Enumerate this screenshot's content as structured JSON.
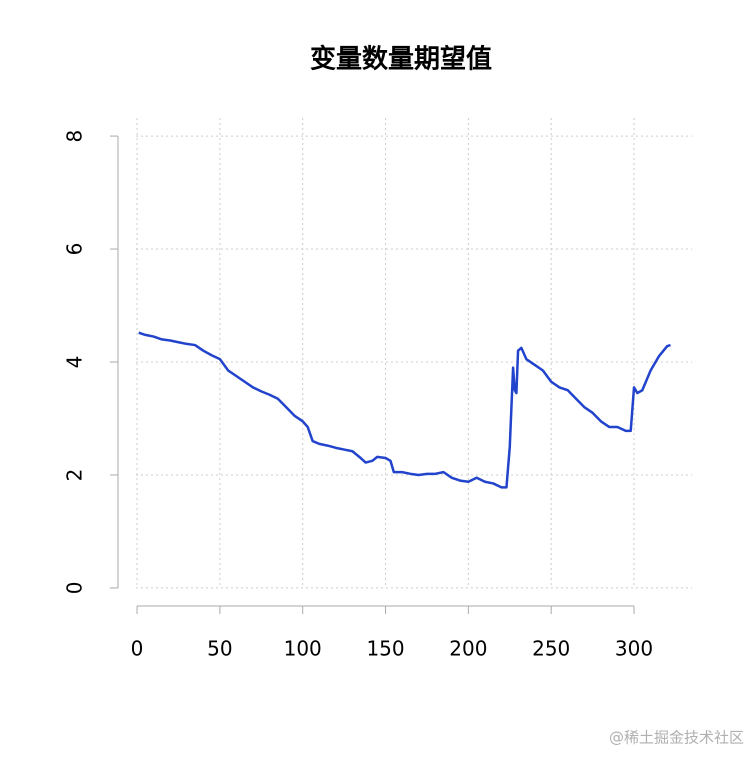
{
  "chart_data": {
    "type": "line",
    "title": "变量数量期望值",
    "x": [
      1,
      5,
      10,
      15,
      20,
      25,
      30,
      35,
      40,
      45,
      50,
      55,
      60,
      65,
      70,
      75,
      80,
      85,
      90,
      95,
      100,
      103,
      106,
      110,
      115,
      120,
      125,
      130,
      135,
      138,
      142,
      145,
      150,
      153,
      155,
      160,
      165,
      170,
      175,
      180,
      185,
      190,
      195,
      200,
      205,
      210,
      215,
      220,
      223,
      225,
      227,
      228,
      229,
      230,
      232,
      235,
      240,
      245,
      250,
      255,
      260,
      265,
      270,
      275,
      280,
      285,
      290,
      295,
      298,
      300,
      302,
      305,
      310,
      315,
      320,
      322
    ],
    "series": [
      {
        "color": "#2244cc",
        "values": [
          4.52,
          4.48,
          4.45,
          4.4,
          4.38,
          4.35,
          4.32,
          4.3,
          4.2,
          4.12,
          4.05,
          3.85,
          3.75,
          3.65,
          3.55,
          3.48,
          3.42,
          3.35,
          3.2,
          3.05,
          2.95,
          2.85,
          2.6,
          2.55,
          2.52,
          2.48,
          2.45,
          2.42,
          2.3,
          2.22,
          2.25,
          2.32,
          2.3,
          2.25,
          2.05,
          2.05,
          2.02,
          2.0,
          2.02,
          2.02,
          2.05,
          1.95,
          1.9,
          1.88,
          1.95,
          1.88,
          1.85,
          1.78,
          1.78,
          2.5,
          3.9,
          3.5,
          3.45,
          4.2,
          4.25,
          4.05,
          3.95,
          3.85,
          3.65,
          3.55,
          3.5,
          3.35,
          3.2,
          3.1,
          2.95,
          2.85,
          2.85,
          2.78,
          2.78,
          3.55,
          3.45,
          3.5,
          3.85,
          4.1,
          4.28,
          4.3
        ]
      }
    ],
    "xlim": [
      -11.5,
      335
    ],
    "ylim": [
      -0.32,
      8.32
    ],
    "xticks": [
      0,
      50,
      100,
      150,
      200,
      250,
      300
    ],
    "yticks": [
      0,
      2,
      4,
      6,
      8
    ],
    "grid": true,
    "watermark": "@稀土掘金技术社区"
  }
}
